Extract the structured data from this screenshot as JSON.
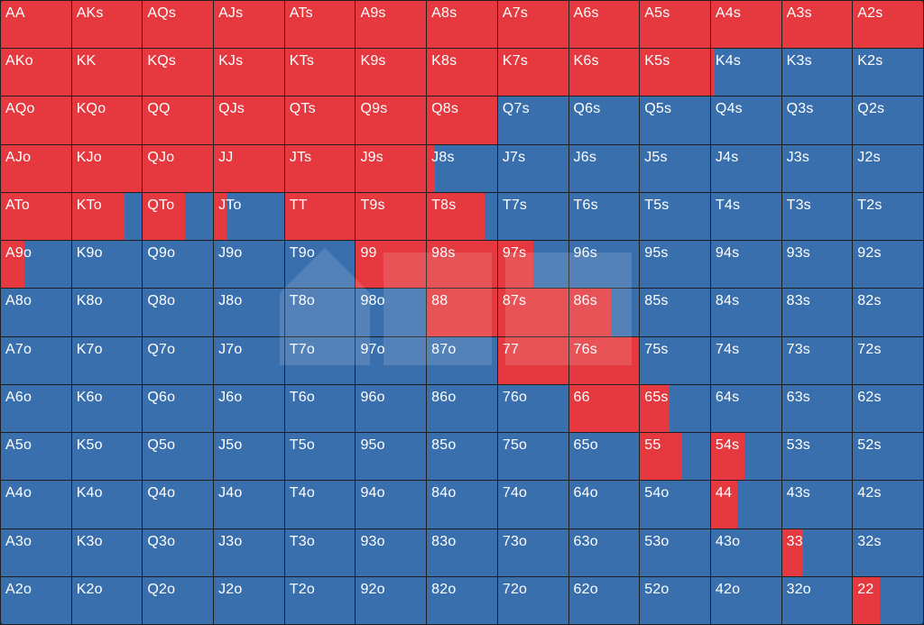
{
  "colors": {
    "raise": "#e5393f",
    "fold": "#3a6fae",
    "label": "#ffffff"
  },
  "hands": [
    [
      "AA",
      "AKs",
      "AQs",
      "AJs",
      "ATs",
      "A9s",
      "A8s",
      "A7s",
      "A6s",
      "A5s",
      "A4s",
      "A3s",
      "A2s"
    ],
    [
      "AKo",
      "KK",
      "KQs",
      "KJs",
      "KTs",
      "K9s",
      "K8s",
      "K7s",
      "K6s",
      "K5s",
      "K4s",
      "K3s",
      "K2s"
    ],
    [
      "AQo",
      "KQo",
      "QQ",
      "QJs",
      "QTs",
      "Q9s",
      "Q8s",
      "Q7s",
      "Q6s",
      "Q5s",
      "Q4s",
      "Q3s",
      "Q2s"
    ],
    [
      "AJo",
      "KJo",
      "QJo",
      "JJ",
      "JTs",
      "J9s",
      "J8s",
      "J7s",
      "J6s",
      "J5s",
      "J4s",
      "J3s",
      "J2s"
    ],
    [
      "ATo",
      "KTo",
      "QTo",
      "JTo",
      "TT",
      "T9s",
      "T8s",
      "T7s",
      "T6s",
      "T5s",
      "T4s",
      "T3s",
      "T2s"
    ],
    [
      "A9o",
      "K9o",
      "Q9o",
      "J9o",
      "T9o",
      "99",
      "98s",
      "97s",
      "96s",
      "95s",
      "94s",
      "93s",
      "92s"
    ],
    [
      "A8o",
      "K8o",
      "Q8o",
      "J8o",
      "T8o",
      "98o",
      "88",
      "87s",
      "86s",
      "85s",
      "84s",
      "83s",
      "82s"
    ],
    [
      "A7o",
      "K7o",
      "Q7o",
      "J7o",
      "T7o",
      "97o",
      "87o",
      "77",
      "76s",
      "75s",
      "74s",
      "73s",
      "72s"
    ],
    [
      "A6o",
      "K6o",
      "Q6o",
      "J6o",
      "T6o",
      "96o",
      "86o",
      "76o",
      "66",
      "65s",
      "64s",
      "63s",
      "62s"
    ],
    [
      "A5o",
      "K5o",
      "Q5o",
      "J5o",
      "T5o",
      "95o",
      "85o",
      "75o",
      "65o",
      "55",
      "54s",
      "53s",
      "52s"
    ],
    [
      "A4o",
      "K4o",
      "Q4o",
      "J4o",
      "T4o",
      "94o",
      "84o",
      "74o",
      "64o",
      "54o",
      "44",
      "43s",
      "42s"
    ],
    [
      "A3o",
      "K3o",
      "Q3o",
      "J3o",
      "T3o",
      "93o",
      "83o",
      "73o",
      "63o",
      "53o",
      "43o",
      "33",
      "32s"
    ],
    [
      "A2o",
      "K2o",
      "Q2o",
      "J2o",
      "T2o",
      "92o",
      "82o",
      "72o",
      "62o",
      "52o",
      "42o",
      "32o",
      "22"
    ]
  ],
  "raise_fraction": [
    [
      1,
      1,
      1,
      1,
      1,
      1,
      1,
      1,
      1,
      1,
      1,
      1,
      1
    ],
    [
      1,
      1,
      1,
      1,
      1,
      1,
      1,
      1,
      1,
      1,
      0.05,
      0,
      0
    ],
    [
      1,
      1,
      1,
      1,
      1,
      1,
      1,
      0,
      0,
      0,
      0,
      0,
      0
    ],
    [
      1,
      1,
      1,
      1,
      1,
      1,
      0.12,
      0,
      0,
      0,
      0,
      0,
      0
    ],
    [
      1,
      0.75,
      0.6,
      0.18,
      1,
      1,
      0.82,
      0,
      0,
      0,
      0,
      0,
      0
    ],
    [
      0.33,
      0,
      0,
      0,
      0,
      1,
      1,
      0.5,
      0,
      0,
      0,
      0,
      0
    ],
    [
      0,
      0,
      0,
      0,
      0,
      0,
      1,
      1,
      0.6,
      0,
      0,
      0,
      0
    ],
    [
      0,
      0,
      0,
      0,
      0,
      0,
      0,
      1,
      1,
      0,
      0,
      0,
      0
    ],
    [
      0,
      0,
      0,
      0,
      0,
      0,
      0,
      0,
      1,
      0.42,
      0,
      0,
      0
    ],
    [
      0,
      0,
      0,
      0,
      0,
      0,
      0,
      0,
      0,
      0.6,
      0.48,
      0,
      0
    ],
    [
      0,
      0,
      0,
      0,
      0,
      0,
      0,
      0,
      0,
      0,
      0.38,
      0,
      0
    ],
    [
      0,
      0,
      0,
      0,
      0,
      0,
      0,
      0,
      0,
      0,
      0,
      0.3,
      0
    ],
    [
      0,
      0,
      0,
      0,
      0,
      0,
      0,
      0,
      0,
      0,
      0,
      0,
      0.38
    ]
  ]
}
